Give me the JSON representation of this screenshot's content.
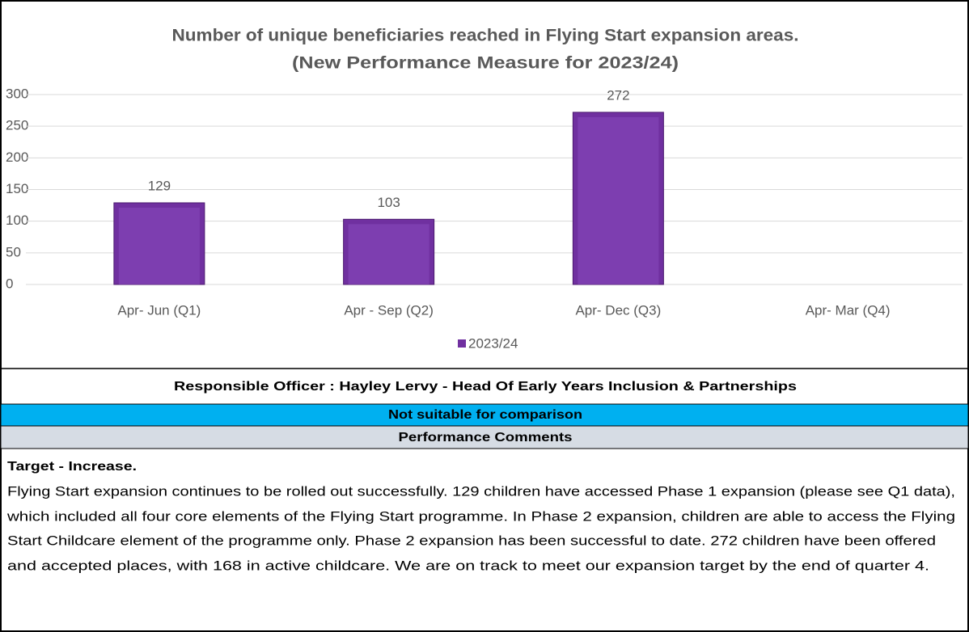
{
  "chart_data": {
    "type": "bar",
    "title": [
      "Number of unique beneficiaries reached in Flying Start expansion areas.",
      "(New Performance Measure for 2023/24)"
    ],
    "categories": [
      "Apr- Jun  (Q1)",
      "Apr - Sep  (Q2)",
      "Apr- Dec  (Q3)",
      "Apr- Mar  (Q4)"
    ],
    "series": [
      {
        "name": "2023/24",
        "color": "#7030a0",
        "values": [
          129,
          103,
          272,
          null
        ]
      }
    ],
    "ylim": [
      0,
      300
    ],
    "yticks": [
      0,
      50,
      100,
      150,
      200,
      250,
      300
    ],
    "grid": true,
    "legend": "bottom"
  },
  "officer": "Responsible Officer :  Hayley Lervy  - Head Of Early Years Inclusion & Partnerships",
  "comparison": "Not suitable for comparison",
  "comments_header": "Performance Comments",
  "comments": {
    "heading": "Target - Increase.",
    "lines": [
      "Flying Start expansion continues to be rolled out successfully. 129 children have accessed Phase 1 expansion (please see Q1 data),",
      "which included all four core elements of the Flying Start programme. In Phase 2 expansion, children are able to access the Flying",
      "Start Childcare element of the programme only. Phase 2 expansion has been successful to date. 272 children have been offered",
      "and accepted places, with 168 in active childcare. We are on track  to meet our expansion target by the end of quarter 4."
    ]
  }
}
